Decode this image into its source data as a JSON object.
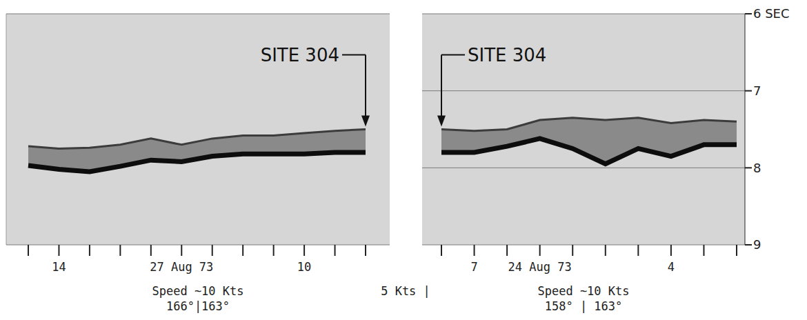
{
  "chart_data": [
    {
      "type": "line",
      "categories": [
        null,
        "14",
        null,
        null,
        null,
        "27 Aug 73",
        null,
        null,
        null,
        "10",
        null,
        null
      ],
      "series": [
        {
          "color": "#3c3c3c",
          "values": [
            7.72,
            7.75,
            7.74,
            7.7,
            7.62,
            7.7,
            7.62,
            7.58,
            7.58,
            7.55,
            7.52,
            7.5
          ]
        },
        {
          "color": "#0d0d0d",
          "values": [
            7.97,
            8.02,
            8.05,
            7.98,
            7.9,
            7.92,
            7.85,
            7.82,
            7.82,
            7.82,
            7.8,
            7.8
          ]
        }
      ],
      "ylim": [
        6,
        9
      ],
      "yticks": [
        {
          "value": 6,
          "label": "6 SEC"
        },
        7,
        8,
        9
      ],
      "grid": true,
      "tick_labels": "x",
      "annotations": [
        {
          "text": "SITE 304",
          "x": 11
        }
      ],
      "captions": [
        "Speed ~10 Kts",
        "166°|163°"
      ]
    },
    {
      "type": "line",
      "categories": [
        null,
        "7",
        null,
        "24 Aug 73",
        null,
        null,
        null,
        "4",
        null,
        null
      ],
      "series": [
        {
          "color": "#3c3c3c",
          "values": [
            7.5,
            7.52,
            7.5,
            7.38,
            7.35,
            7.38,
            7.35,
            7.42,
            7.38,
            7.4
          ]
        },
        {
          "color": "#0d0d0d",
          "values": [
            7.8,
            7.8,
            7.72,
            7.62,
            7.75,
            7.95,
            7.75,
            7.85,
            7.7,
            7.7
          ]
        }
      ],
      "ylim": [
        6,
        9
      ],
      "yticks": [
        {
          "value": 6,
          "label": "6 SEC"
        },
        7,
        8,
        9
      ],
      "grid": true,
      "annotations": [
        {
          "text": "SITE 304",
          "x": 0
        }
      ],
      "captions": [
        "Speed ~10 Kts",
        "158° | 163°"
      ]
    }
  ],
  "annotation": "5 Kts |"
}
